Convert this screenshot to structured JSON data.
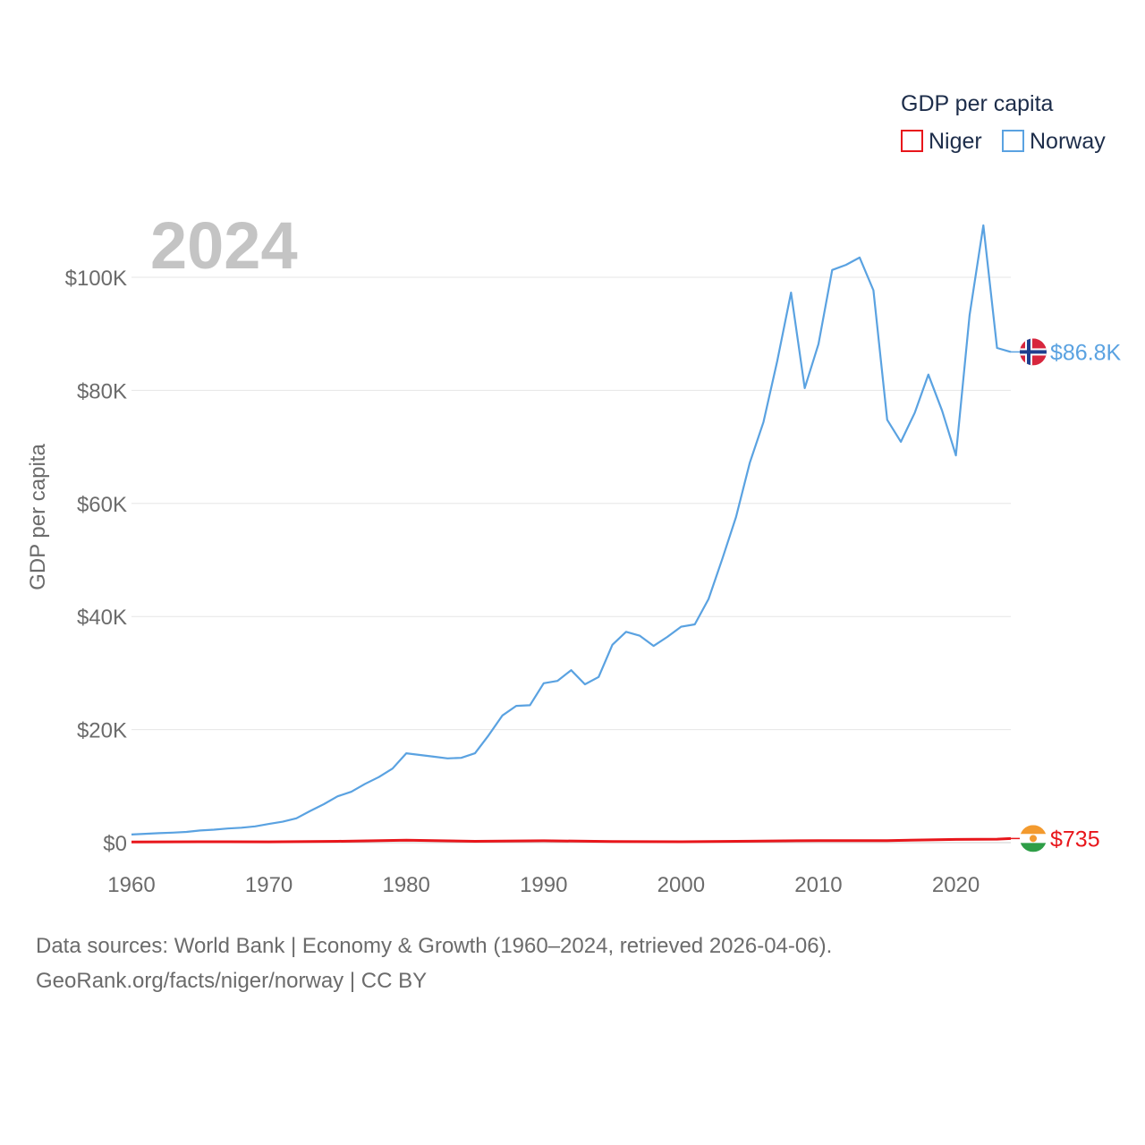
{
  "chart_data": {
    "type": "line",
    "year_label": "2024",
    "legend": {
      "title": "GDP per capita",
      "entries": [
        {
          "name": "Niger",
          "color": "#e8161b"
        },
        {
          "name": "Norway",
          "color": "#5aa2e1"
        }
      ]
    },
    "ylabel": "GDP per capita",
    "ylim": [
      0,
      110000
    ],
    "xlim": [
      1960,
      2024
    ],
    "y_ticks": [
      {
        "value": 0,
        "label": "$0"
      },
      {
        "value": 20000,
        "label": "$20K"
      },
      {
        "value": 40000,
        "label": "$40K"
      },
      {
        "value": 60000,
        "label": "$60K"
      },
      {
        "value": 80000,
        "label": "$80K"
      },
      {
        "value": 100000,
        "label": "$100K"
      }
    ],
    "x_ticks": [
      {
        "value": 1960,
        "label": "1960"
      },
      {
        "value": 1970,
        "label": "1970"
      },
      {
        "value": 1980,
        "label": "1980"
      },
      {
        "value": 1990,
        "label": "1990"
      },
      {
        "value": 2000,
        "label": "2000"
      },
      {
        "value": 2010,
        "label": "2010"
      },
      {
        "value": 2020,
        "label": "2020"
      }
    ],
    "series": [
      {
        "name": "Norway",
        "color": "#5aa2e1",
        "end_label": "$86.8K",
        "flag_icon": "norway-flag-icon",
        "x": [
          1960,
          1961,
          1962,
          1963,
          1964,
          1965,
          1966,
          1967,
          1968,
          1969,
          1970,
          1971,
          1972,
          1973,
          1974,
          1975,
          1976,
          1977,
          1978,
          1979,
          1980,
          1981,
          1982,
          1983,
          1984,
          1985,
          1986,
          1987,
          1988,
          1989,
          1990,
          1991,
          1992,
          1993,
          1994,
          1995,
          1996,
          1997,
          1998,
          1999,
          2000,
          2001,
          2002,
          2003,
          2004,
          2005,
          2006,
          2007,
          2008,
          2009,
          2010,
          2011,
          2012,
          2013,
          2014,
          2015,
          2016,
          2017,
          2018,
          2019,
          2020,
          2021,
          2022,
          2023,
          2024
        ],
        "values": [
          1440,
          1560,
          1670,
          1770,
          1900,
          2150,
          2300,
          2500,
          2640,
          2880,
          3300,
          3700,
          4300,
          5600,
          6800,
          8200,
          9000,
          10400,
          11600,
          13100,
          15800,
          15500,
          15200,
          14900,
          15000,
          15800,
          19000,
          22500,
          24200,
          24300,
          28200,
          28600,
          30500,
          28000,
          29300,
          35000,
          37300,
          36600,
          34800,
          36400,
          38200,
          38600,
          43100,
          50200,
          57600,
          67200,
          74400,
          85200,
          97300,
          80400,
          88200,
          101300,
          102200,
          103500,
          97700,
          74800,
          70900,
          76000,
          82800,
          76400,
          68500,
          93300,
          109200,
          87500,
          86800
        ]
      },
      {
        "name": "Niger",
        "color": "#e8161b",
        "end_label": "$735",
        "flag_icon": "niger-flag-icon",
        "x": [
          1960,
          1965,
          1970,
          1975,
          1980,
          1985,
          1990,
          1995,
          2000,
          2005,
          2010,
          2015,
          2020,
          2023,
          2024
        ],
        "values": [
          130,
          160,
          150,
          230,
          420,
          230,
          330,
          200,
          160,
          250,
          360,
          370,
          570,
          620,
          735
        ]
      }
    ]
  },
  "footer": {
    "line1": "Data sources: World Bank | Economy & Growth (1960–2024, retrieved 2026-04-06).",
    "line2": "GeoRank.org/facts/niger/norway | CC BY"
  }
}
